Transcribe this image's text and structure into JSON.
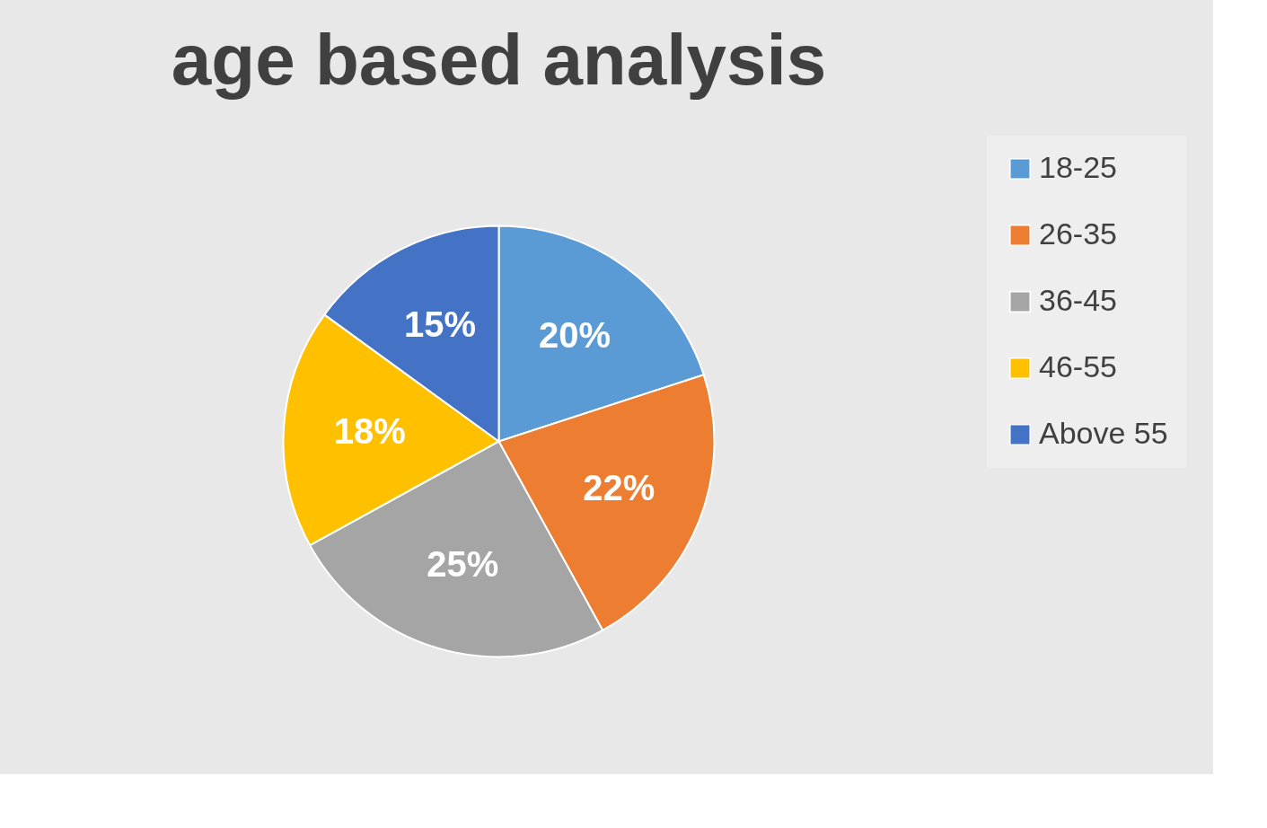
{
  "chart_data": {
    "type": "pie",
    "title": "age based analysis",
    "categories": [
      "18-25",
      "26-35",
      "36-45",
      "46-55",
      "Above 55"
    ],
    "values": [
      20,
      22,
      25,
      18,
      15
    ],
    "colors": [
      "#5b9bd5",
      "#ed7d31",
      "#a5a5a5",
      "#ffc000",
      "#4472c4"
    ],
    "value_labels": [
      "20%",
      "22%",
      "25%",
      "18%",
      "15%"
    ],
    "legend": "right"
  }
}
